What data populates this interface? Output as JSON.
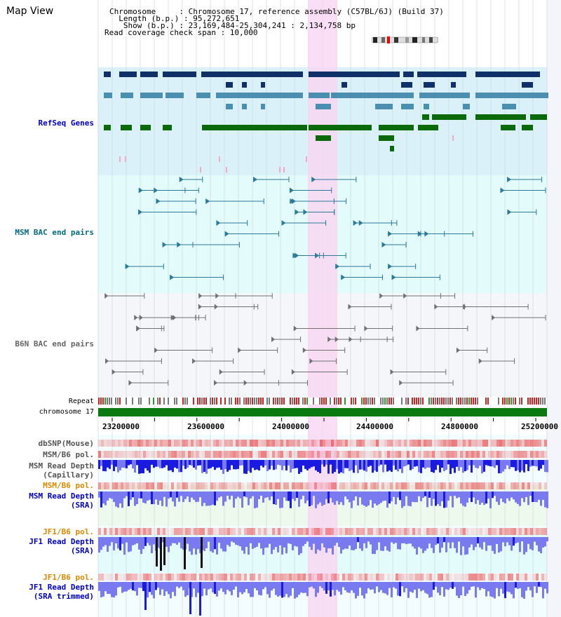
{
  "page": {
    "title": "Map View"
  },
  "header": {
    "chromosome": "Chromosome     : Chromosome 17, reference assembly (C57BL/6J) (Build 37)",
    "length": "  Length (b.p.) : 95,272,651",
    "show": "   Show (b.p.) : 23,169,484-25,304,241 : 2,134,758 bp",
    "coverage": "Read coverage check span : 10,000"
  },
  "tracks": {
    "refseq": "RefSeq Genes",
    "msm_bac": "MSM BAC end pairs",
    "b6n_bac": "B6N BAC end pairs",
    "repeat": "Repeat",
    "chrom": "chromosome 17",
    "dbsnp": "dbSNP(Mouse)",
    "msm_b6_pol1": "MSM/B6 pol.",
    "msm_depth_cap_1": "MSM Read Depth",
    "msm_depth_cap_2": "(Capillary)",
    "msm_b6_pol2": "MSM/B6 pol.",
    "msm_depth_sra_1": "MSM Read Depth",
    "msm_depth_sra_2": "(SRA)",
    "jf1_b6_pol1": "JF1/B6 pol.",
    "jf1_depth_sra_1": "JF1 Read Depth",
    "jf1_depth_sra_2": "(SRA)",
    "jf1_b6_pol2": "JF1/B6 pol.",
    "jf1_depth_trim_1": "JF1 Read Depth",
    "jf1_depth_trim_2": "(SRA trimmed)"
  },
  "axis": {
    "ticks": [
      "23200000",
      "23600000",
      "24000000",
      "24400000",
      "24800000",
      "25200000"
    ]
  },
  "colors": {
    "refseq_bg": "#daf1fa",
    "msm_bac_bg": "#e3fbfb",
    "b6n_bac_bg": "#f4f6f9",
    "highlight": "#f9d6f2",
    "refseq_dark": "#10306a",
    "refseq_mid": "#4a8fb0",
    "refseq_green": "#0a6a0a",
    "msm_bac": "#2a7a9a",
    "b6n_bac": "#707070",
    "label_blue": "#0000cc",
    "label_teal": "#006a80",
    "label_orange": "#dd8800",
    "chrom_green": "#0a7a10",
    "depth_blue": "#1a1ae0",
    "depth_light": "#7a7af0"
  }
}
